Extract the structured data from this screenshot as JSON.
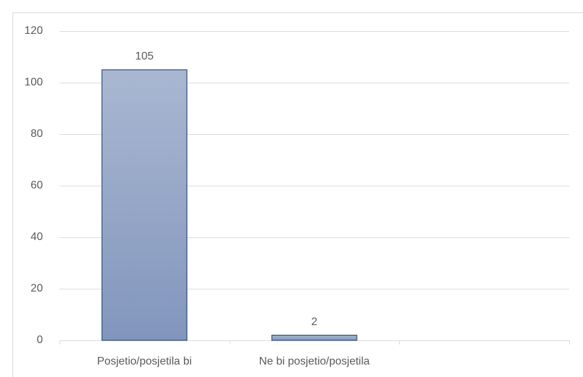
{
  "chart_data": {
    "type": "bar",
    "categories": [
      "Posjetio/posjetila bi",
      "Ne bi posjetio/posjetila",
      null
    ],
    "values": [
      105,
      2,
      null
    ],
    "color": "#96a7c9",
    "ylim": [
      0,
      120
    ],
    "yticks": [
      0,
      20,
      40,
      60,
      80,
      100,
      120
    ],
    "grid": true
  }
}
